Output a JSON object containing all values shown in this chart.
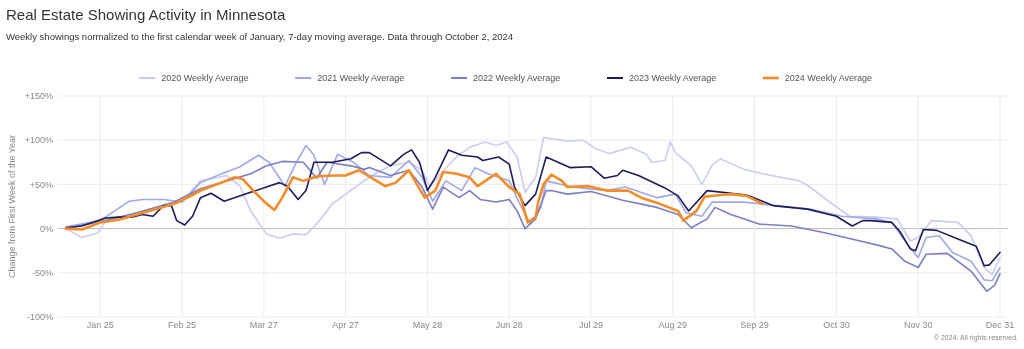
{
  "chart_data": {
    "type": "line",
    "title": "Real Estate Showing Activity in Minnesota",
    "subtitle": "Weekly showings normalized to the first calendar week of January, 7-day moving average. Data through October 2, 2024",
    "ylabel": "Change from First Week of the Year",
    "annotations": [
      "© 2024. All rights reserved."
    ],
    "xlim": [
      "--01-09",
      "--12-31"
    ],
    "ylim": [
      -100,
      150
    ],
    "xticks": [
      {
        "value": "--01-25",
        "label": "Jan 25"
      },
      {
        "value": "--02-25",
        "label": "Feb 25"
      },
      {
        "value": "--03-27",
        "label": "Mar 27"
      },
      {
        "value": "--04-27",
        "label": "Apr 27"
      },
      {
        "value": "--05-28",
        "label": "May 28"
      },
      {
        "value": "--06-28",
        "label": "Jun 28"
      },
      {
        "value": "--07-29",
        "label": "Jul 29"
      },
      {
        "value": "--08-29",
        "label": "Aug 29"
      },
      {
        "value": "--09-29",
        "label": "Sep 29"
      },
      {
        "value": "--10-30",
        "label": "Oct 30"
      },
      {
        "value": "--11-30",
        "label": "Nov 30"
      },
      {
        "value": "--12-31",
        "label": "Dec 31"
      }
    ],
    "yticks": [
      {
        "value": -100,
        "label": "-100%"
      },
      {
        "value": -50,
        "label": "-50%"
      },
      {
        "value": 0,
        "label": "0%"
      },
      {
        "value": 50,
        "label": "+50%"
      },
      {
        "value": 100,
        "label": "+100%"
      },
      {
        "value": 150,
        "label": "+150%"
      }
    ],
    "grid": true,
    "legend": "top",
    "line_style": "solid",
    "series": [
      {
        "name": "2020 Weekly Average",
        "color": "#c9cdf0",
        "x": [
          "--01-12",
          "--01-18",
          "--01-24",
          "--01-27",
          "--02-10",
          "--02-25",
          "--03-03",
          "--03-13",
          "--03-18",
          "--03-22",
          "--03-28",
          "--04-02",
          "--04-07",
          "--04-12",
          "--04-16",
          "--04-22",
          "--04-28",
          "--05-04",
          "--05-08",
          "--05-14",
          "--05-21",
          "--05-26",
          "--05-29",
          "--06-02",
          "--06-08",
          "--06-13",
          "--06-19",
          "--06-23",
          "--06-27",
          "--07-01",
          "--07-04",
          "--07-08",
          "--07-11",
          "--07-20",
          "--07-26",
          "--07-31",
          "--08-05",
          "--08-13",
          "--08-19",
          "--08-21",
          "--08-26",
          "--08-28",
          "--08-30",
          "--09-05",
          "--09-09",
          "--09-13",
          "--09-16",
          "--09-25",
          "--10-02",
          "--10-16",
          "--10-20",
          "--10-27",
          "--11-04",
          "--11-14",
          "--11-22",
          "--11-27",
          "--11-30",
          "--12-05",
          "--12-15",
          "--12-20",
          "--12-25",
          "--12-28",
          "--12-31"
        ],
        "values": [
          0,
          -10,
          -5,
          8,
          20,
          30,
          54,
          60,
          48,
          20,
          -6,
          -11,
          -6,
          -7,
          5,
          28,
          41,
          54,
          62,
          71,
          75,
          66,
          47,
          62,
          81,
          92,
          98,
          94,
          98,
          81,
          41,
          58,
          103,
          99,
          100,
          90,
          85,
          92,
          84,
          75,
          77,
          98,
          86,
          71,
          50,
          72,
          79,
          67,
          62,
          54,
          47,
          31,
          14,
          13,
          11,
          -14,
          -10,
          9,
          7,
          -8,
          -44,
          -52,
          -33
        ]
      },
      {
        "name": "2021 Weekly Average",
        "color": "#9fa8e3",
        "x": [
          "--01-12",
          "--01-25",
          "--02-05",
          "--02-10",
          "--02-18",
          "--02-25",
          "--03-03",
          "--03-11",
          "--03-18",
          "--03-25",
          "--03-29",
          "--04-04",
          "--04-08",
          "--04-12",
          "--04-15",
          "--04-19",
          "--04-24",
          "--04-30",
          "--05-06",
          "--05-14",
          "--05-21",
          "--05-26",
          "--05-30",
          "--06-04",
          "--06-10",
          "--06-15",
          "--06-20",
          "--06-28",
          "--07-02",
          "--07-06",
          "--07-10",
          "--07-12",
          "--07-22",
          "--08-04",
          "--08-11",
          "--08-23",
          "--08-30",
          "--09-03",
          "--09-09",
          "--09-13",
          "--09-25",
          "--10-07",
          "--10-20",
          "--11-01",
          "--11-14",
          "--11-20",
          "--11-26",
          "--11-30",
          "--12-03",
          "--12-08",
          "--12-13",
          "--12-20",
          "--12-25",
          "--12-28",
          "--12-31"
        ],
        "values": [
          2,
          9,
          31,
          33,
          33,
          30,
          52,
          62,
          70,
          83,
          75,
          48,
          73,
          94,
          83,
          50,
          84,
          75,
          60,
          58,
          77,
          58,
          31,
          54,
          43,
          69,
          62,
          54,
          28,
          5,
          24,
          54,
          47,
          43,
          47,
          35,
          39,
          18,
          14,
          30,
          30,
          26,
          22,
          14,
          11,
          7,
          -18,
          -33,
          -10,
          -8,
          -27,
          -37,
          -58,
          -59,
          -44
        ]
      },
      {
        "name": "2022 Weekly Average",
        "color": "#7b7fc0",
        "x": [
          "--01-12",
          "--01-25",
          "--02-08",
          "--02-22",
          "--03-03",
          "--03-13",
          "--03-22",
          "--03-28",
          "--04-03",
          "--04-11",
          "--04-16",
          "--04-20",
          "--04-29",
          "--05-04",
          "--05-06",
          "--05-14",
          "--05-21",
          "--05-26",
          "--05-30",
          "--06-03",
          "--06-09",
          "--06-13",
          "--06-17",
          "--06-23",
          "--06-28",
          "--07-01",
          "--07-04",
          "--07-08",
          "--07-12",
          "--07-14",
          "--07-20",
          "--07-29",
          "--08-10",
          "--08-23",
          "--08-31",
          "--09-05",
          "--09-11",
          "--09-14",
          "--09-20",
          "--10-01",
          "--10-13",
          "--10-26",
          "--11-08",
          "--11-15",
          "--11-20",
          "--11-25",
          "--11-30",
          "--12-03",
          "--12-11",
          "--12-20",
          "--12-26",
          "--12-29",
          "--12-31"
        ],
        "values": [
          0,
          8,
          18,
          30,
          45,
          54,
          62,
          71,
          76,
          75,
          57,
          75,
          71,
          67,
          69,
          60,
          66,
          47,
          22,
          47,
          35,
          43,
          33,
          30,
          33,
          20,
          0,
          11,
          43,
          43,
          39,
          42,
          32,
          24,
          16,
          1,
          11,
          24,
          16,
          5,
          3,
          -5,
          -14,
          -19,
          -23,
          -37,
          -44,
          -29,
          -28,
          -48,
          -71,
          -64,
          -51
        ]
      },
      {
        "name": "2023 Weekly Average",
        "color": "#1c1c5a",
        "x": [
          "--01-12",
          "--01-18",
          "--01-22",
          "--01-27",
          "--02-01",
          "--02-06",
          "--02-10",
          "--02-14",
          "--02-18",
          "--02-21",
          "--02-23",
          "--02-26",
          "--02-29",
          "--03-03",
          "--03-07",
          "--03-12",
          "--03-17",
          "--03-22",
          "--03-28",
          "--04-02",
          "--04-05",
          "--04-09",
          "--04-12",
          "--04-15",
          "--04-22",
          "--04-29",
          "--05-03",
          "--05-06",
          "--05-14",
          "--05-19",
          "--05-22",
          "--05-25",
          "--05-28",
          "--05-31",
          "--06-05",
          "--06-10",
          "--06-16",
          "--06-18",
          "--06-24",
          "--06-28",
          "--06-30",
          "--07-04",
          "--07-08",
          "--07-12",
          "--07-21",
          "--07-29",
          "--08-03",
          "--08-08",
          "--08-10",
          "--08-16",
          "--08-26",
          "--08-31",
          "--09-04",
          "--09-11",
          "--09-26",
          "--10-06",
          "--10-19",
          "--10-30",
          "--11-05",
          "--11-09",
          "--11-12",
          "--11-20",
          "--11-23",
          "--11-27",
          "--11-29",
          "--12-02",
          "--12-07",
          "--12-16",
          "--12-22",
          "--12-25",
          "--12-27",
          "--12-31"
        ],
        "values": [
          1,
          3,
          7,
          12,
          13,
          13,
          16,
          14,
          26,
          26,
          9,
          4,
          14,
          35,
          40,
          31,
          36,
          41,
          47,
          52,
          48,
          33,
          43,
          75,
          75,
          79,
          86,
          86,
          71,
          84,
          89,
          75,
          43,
          58,
          89,
          83,
          81,
          77,
          81,
          73,
          47,
          26,
          39,
          81,
          69,
          70,
          57,
          60,
          66,
          60,
          46,
          37,
          20,
          43,
          38,
          26,
          22,
          14,
          3,
          9,
          9,
          7,
          -3,
          -23,
          -25,
          -1,
          -2,
          -13,
          -20,
          -42,
          -41,
          -27
        ]
      },
      {
        "name": "2024 Weekly Average",
        "color": "#f28c28",
        "x": [
          "--01-12",
          "--01-18",
          "--01-25",
          "--02-01",
          "--02-08",
          "--02-15",
          "--02-22",
          "--02-29",
          "--03-03",
          "--03-11",
          "--03-16",
          "--03-19",
          "--03-23",
          "--03-27",
          "--03-31",
          "--04-03",
          "--04-07",
          "--04-11",
          "--04-16",
          "--04-22",
          "--04-27",
          "--05-02",
          "--05-07",
          "--05-12",
          "--05-16",
          "--05-21",
          "--05-24",
          "--05-27",
          "--05-31",
          "--06-03",
          "--06-08",
          "--06-13",
          "--06-16",
          "--06-19",
          "--06-23",
          "--06-28",
          "--07-02",
          "--07-05",
          "--07-08",
          "--07-09",
          "--07-11",
          "--07-14",
          "--07-18",
          "--07-20",
          "--07-28",
          "--08-04",
          "--08-12",
          "--08-17",
          "--08-24",
          "--08-31",
          "--09-02",
          "--09-07",
          "--09-10",
          "--09-16",
          "--09-20",
          "--09-26",
          "--10-02"
        ],
        "values": [
          0,
          -1,
          7,
          10,
          16,
          22,
          28,
          38,
          43,
          52,
          58,
          56,
          43,
          31,
          21,
          35,
          58,
          54,
          59,
          60,
          60,
          66,
          57,
          48,
          52,
          66,
          50,
          35,
          43,
          64,
          62,
          58,
          48,
          54,
          62,
          47,
          39,
          7,
          13,
          30,
          50,
          61,
          54,
          47,
          48,
          43,
          43,
          35,
          28,
          20,
          9,
          20,
          36,
          38,
          39,
          37,
          28
        ]
      }
    ]
  }
}
